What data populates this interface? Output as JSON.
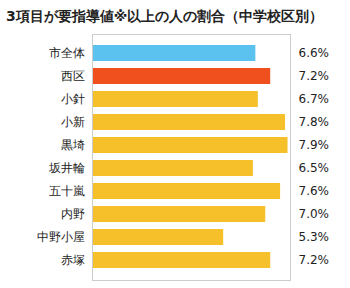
{
  "chart_data": {
    "type": "bar",
    "title": "3項目が要指導値※以上の人の割合（中学校区別）",
    "orientation": "horizontal",
    "categories": [
      "市全体",
      "西区",
      "小針",
      "小新",
      "黒埼",
      "坂井輪",
      "五十嵐",
      "内野",
      "中野小屋",
      "赤塚"
    ],
    "values": [
      6.6,
      7.2,
      6.7,
      7.8,
      7.9,
      6.5,
      7.6,
      7.0,
      5.3,
      7.2
    ],
    "value_labels": [
      "6.6%",
      "7.2%",
      "6.7%",
      "7.8%",
      "7.9%",
      "6.5%",
      "7.6%",
      "7.0%",
      "5.3%",
      "7.2%"
    ],
    "colors": [
      "#5bc2f0",
      "#f0501e",
      "#f5c02a",
      "#f5c02a",
      "#f5c02a",
      "#f5c02a",
      "#f5c02a",
      "#f5c02a",
      "#f5c02a",
      "#f5c02a"
    ],
    "xlim": [
      0,
      8
    ],
    "data_labels": true,
    "tick_labels": "y"
  }
}
